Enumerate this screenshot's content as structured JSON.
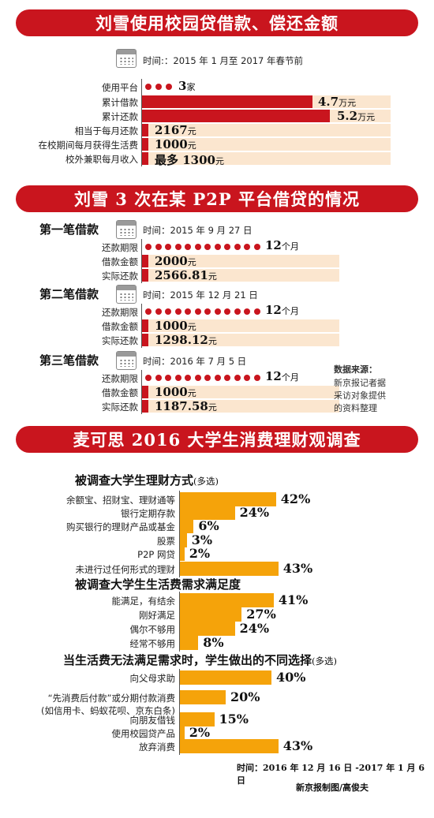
{
  "section1": {
    "title": "刘雪使用校园贷借款、偿还金额",
    "time": "时间:：2015 年 1 月至 2017 年春节前",
    "rows": [
      {
        "label": "使用平台",
        "value": "3",
        "unit": "家"
      },
      {
        "label": "累计借款",
        "value": "4.7",
        "unit": "万元"
      },
      {
        "label": "累计还款",
        "value": "5.2",
        "unit": "万元"
      },
      {
        "label": "相当于每月还款",
        "value": "2167",
        "unit": "元"
      },
      {
        "label": "在校期间每月获得生活费",
        "value": "1000",
        "unit": "元"
      },
      {
        "label": "校外兼职每月收入",
        "value": "最多 1300",
        "unit": "元"
      }
    ]
  },
  "section2": {
    "title": "刘雪 3 次在某 P2P 平台借贷的情况",
    "loans": [
      {
        "name": "第一笔借款",
        "time": "时间：2015 年 9 月 27 日",
        "term_label": "还款期限",
        "term": "12",
        "term_unit": "个月",
        "amount_label": "借款金额",
        "amount": "2000",
        "amount_unit": "元",
        "repay_label": "实际还款",
        "repay": "2566.81",
        "repay_unit": "元"
      },
      {
        "name": "第二笔借款",
        "time": "时间：2015 年 12 月 21 日",
        "term_label": "还款期限",
        "term": "12",
        "term_unit": "个月",
        "amount_label": "借款金额",
        "amount": "1000",
        "amount_unit": "元",
        "repay_label": "实际还款",
        "repay": "1298.12",
        "repay_unit": "元"
      },
      {
        "name": "第三笔借款",
        "time": "时间：2016 年 7 月 5 日",
        "term_label": "还款期限",
        "term": "12",
        "term_unit": "个月",
        "amount_label": "借款金额",
        "amount": "1000",
        "amount_unit": "元",
        "repay_label": "实际还款",
        "repay": "1187.58",
        "repay_unit": "元"
      }
    ],
    "source_title": "数据来源：",
    "source_lines": [
      "新京报记者据",
      "采访对象提供",
      "的资料整理"
    ]
  },
  "section3": {
    "title": "麦可思 2016 大学生消费理财观调查",
    "footer_time": "时间：2016 年 12 月 16 日 -2017 年 1 月 6 日",
    "credit": "新京报制图/高俊夫"
  },
  "chart_data": [
    {
      "type": "bar",
      "title": "刘雪使用校园贷借款、偿还金额",
      "categories": [
        "使用平台",
        "累计借款",
        "累计还款",
        "相当于每月还款",
        "在校期间每月获得生活费",
        "校外兼职每月收入"
      ],
      "values": [
        "3家",
        "4.7万元",
        "5.2万元",
        "2167元",
        "1000元",
        "最多1300元"
      ]
    },
    {
      "type": "bar",
      "title": "被调查大学生理财方式",
      "title_note": "(多选)",
      "categories": [
        "余额宝、招财宝、理财通等",
        "银行定期存款",
        "购买银行的理财产品或基金",
        "股票",
        "P2P 网贷",
        "未进行过任何形式的理财"
      ],
      "values": [
        42,
        24,
        6,
        3,
        2,
        43
      ],
      "unit": "%"
    },
    {
      "type": "bar",
      "title": "被调查大学生生活费需求满足度",
      "categories": [
        "能满足，有结余",
        "刚好满足",
        "偶尔不够用",
        "经常不够用"
      ],
      "values": [
        41,
        27,
        24,
        8
      ],
      "unit": "%"
    },
    {
      "type": "bar",
      "title": "当生活费无法满足需求时，学生做出的不同选择",
      "title_note": "(多选)",
      "categories": [
        "向父母求助",
        "“先消费后付款”或分期付款消费",
        "向朋友借钱",
        "使用校园贷产品",
        "放弃消费"
      ],
      "category_notes": [
        "",
        "(如信用卡、蚂蚁花呗、京东白条)",
        "",
        "",
        ""
      ],
      "values": [
        40,
        20,
        15,
        2,
        43
      ],
      "unit": "%"
    }
  ]
}
